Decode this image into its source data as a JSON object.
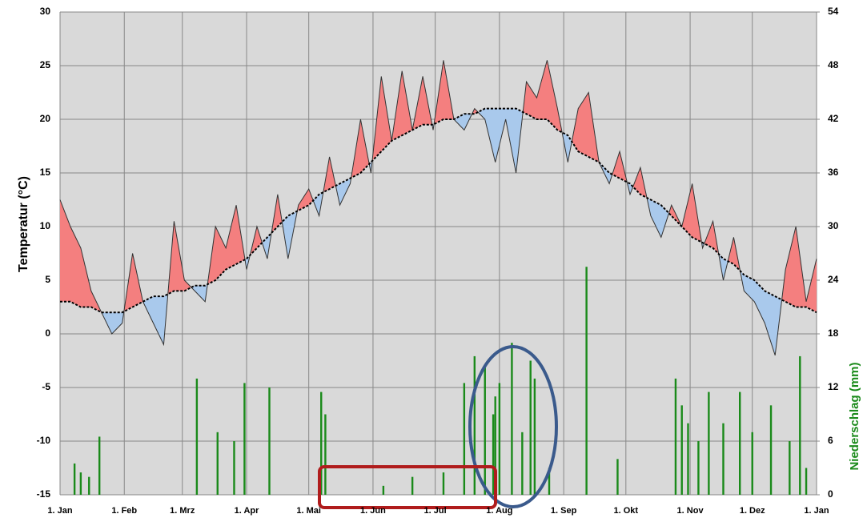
{
  "chart_data": {
    "type": "line",
    "x": [
      0,
      5,
      10,
      15,
      20,
      25,
      30,
      35,
      40,
      45,
      50,
      55,
      60,
      65,
      70,
      75,
      80,
      85,
      90,
      95,
      100,
      105,
      110,
      115,
      120,
      125,
      130,
      135,
      140,
      145,
      150,
      155,
      160,
      165,
      170,
      175,
      180,
      185,
      190,
      195,
      200,
      205,
      210,
      215,
      220,
      225,
      230,
      235,
      240,
      245,
      250,
      255,
      260,
      265,
      270,
      275,
      280,
      285,
      290,
      295,
      300,
      305,
      310,
      315,
      320,
      325,
      330,
      335,
      340,
      345,
      350,
      355,
      360,
      365
    ],
    "series": [
      {
        "color": "#333333",
        "values": [
          12.5,
          10,
          8,
          4,
          2,
          0,
          1,
          7.5,
          3,
          1,
          -1,
          10.5,
          5,
          4,
          3,
          10,
          8,
          12,
          6,
          10,
          7,
          13,
          7,
          12,
          13.5,
          11,
          16.5,
          12,
          14,
          20,
          15,
          24,
          18,
          24.5,
          19,
          24,
          19,
          25.5,
          20,
          19,
          21,
          20,
          16,
          20,
          15,
          23.5,
          22,
          25.5,
          21,
          16,
          21,
          22.5,
          16,
          14,
          17,
          13,
          15.5,
          11,
          9,
          12,
          10,
          14,
          8,
          10.5,
          5,
          9,
          4,
          3,
          1,
          -2,
          6,
          10,
          3,
          7
        ]
      },
      {
        "color": "#000000",
        "values": [
          3,
          3,
          2.5,
          2.5,
          2,
          2,
          2,
          2.5,
          3,
          3.5,
          3.5,
          4,
          4,
          4.5,
          4.5,
          5,
          6,
          6.5,
          7,
          8,
          9,
          10,
          11,
          11.5,
          12,
          13,
          13.5,
          14,
          14.5,
          15,
          16,
          17,
          18,
          18.5,
          19,
          19.5,
          19.5,
          20,
          20,
          20.5,
          20.5,
          21,
          21,
          21,
          21,
          20.5,
          20,
          20,
          19,
          18.5,
          17,
          16.5,
          16,
          15,
          14.5,
          14,
          13,
          12.5,
          12,
          11,
          10,
          9,
          8.5,
          8,
          7,
          6.5,
          5.5,
          5,
          4,
          3.5,
          3,
          2.5,
          2.5,
          2
        ]
      },
      {
        "type": "bar",
        "axis": "y2",
        "color": "#1a8a1a",
        "x": [
          7,
          10,
          14,
          19,
          66,
          76,
          84,
          89,
          101,
          126,
          128,
          156,
          170,
          185,
          195,
          200,
          205,
          209,
          210,
          212,
          218,
          223,
          227,
          229,
          236,
          254,
          269,
          297,
          300,
          303,
          308,
          313,
          320,
          328,
          334,
          343,
          352,
          357,
          360
        ],
        "values": [
          3.5,
          2.5,
          2,
          6.5,
          13,
          7,
          6,
          12.5,
          12,
          11.5,
          9,
          1,
          2,
          2.5,
          12.5,
          15.5,
          14.5,
          9,
          11,
          12.5,
          17,
          7,
          15,
          13,
          3,
          25.5,
          4,
          13,
          10,
          8,
          6,
          11.5,
          8,
          11.5,
          7,
          10,
          6,
          15.5,
          3
        ]
      }
    ],
    "xlim": [
      0,
      365
    ],
    "xticks": [
      {
        "value": 0,
        "label": "1. Jan"
      },
      {
        "value": 31,
        "label": "1. Feb"
      },
      {
        "value": 59,
        "label": "1. Mrz"
      },
      {
        "value": 90,
        "label": "1. Apr"
      },
      {
        "value": 120,
        "label": "1. Mai"
      },
      {
        "value": 151,
        "label": "1. Jun"
      },
      {
        "value": 181,
        "label": "1. Jul"
      },
      {
        "value": 212,
        "label": "1. Aug"
      },
      {
        "value": 243,
        "label": "1. Sep"
      },
      {
        "value": 273,
        "label": "1. Okt"
      },
      {
        "value": 304,
        "label": "1. Nov"
      },
      {
        "value": 334,
        "label": "1. Dez"
      },
      {
        "value": 365,
        "label": "1. Jan"
      }
    ],
    "ylim": [
      -15,
      30
    ],
    "yticks": [
      -15,
      -10,
      -5,
      0,
      5,
      10,
      15,
      20,
      25,
      30
    ],
    "y2lim": [
      0,
      54
    ],
    "y2ticks": [
      0,
      6,
      12,
      18,
      24,
      30,
      36,
      42,
      48,
      54
    ],
    "ylabel": "Temperatur (°C)",
    "y2label": "Niederschlag (mm)",
    "grid": true,
    "fill_above": "#f47f7f",
    "fill_below": "#a9c9ec"
  }
}
